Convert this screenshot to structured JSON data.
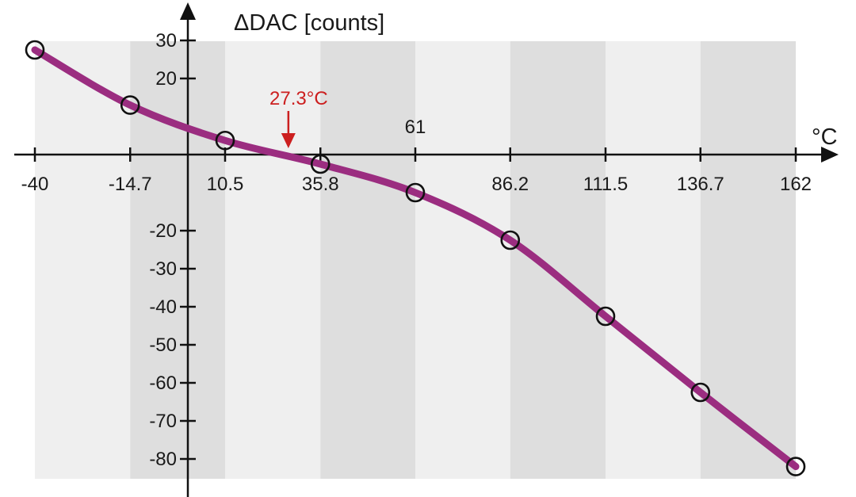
{
  "chart_data": {
    "type": "line",
    "title": "",
    "ylabel": "ΔDAC [counts]",
    "xlabel": "°C",
    "xlim": [
      -40,
      162
    ],
    "ylim": [
      -82,
      31
    ],
    "x_ticks": [
      "-40",
      "-14.7",
      "10.5",
      "35.8",
      "61",
      "86.2",
      "111.5",
      "136.7",
      "162"
    ],
    "y_ticks": [
      "30",
      "20",
      "-20",
      "-30",
      "-40",
      "-50",
      "-60",
      "-70",
      "-80"
    ],
    "grid": "alternating shaded vertical bands",
    "colors": {
      "line": "#9b2d80",
      "band_light": "#efefef",
      "band_dark": "#dedede",
      "annotation": "#cc1f1f"
    },
    "series": [
      {
        "x": [
          -40,
          -14.7,
          10.5,
          35.8,
          61,
          86.2,
          111.5,
          136.7,
          162
        ],
        "y": [
          27.5,
          13,
          3.7,
          -2.5,
          -10,
          -22.5,
          -42.5,
          -62.5,
          -82
        ]
      }
    ],
    "annotation": {
      "label": "27.3°C",
      "x": 27.3,
      "y": 0
    }
  }
}
